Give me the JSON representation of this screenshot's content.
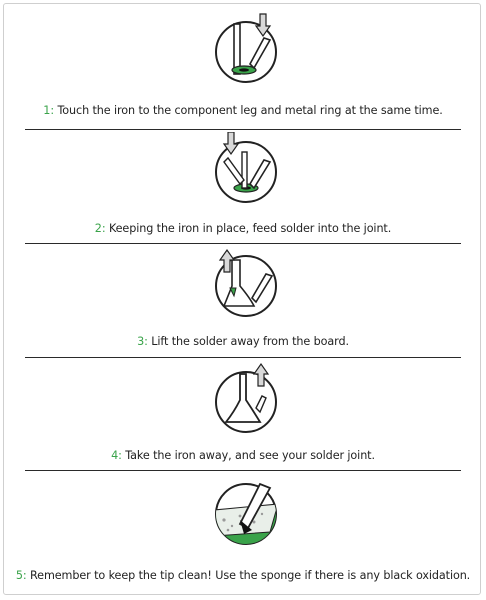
{
  "steps": [
    {
      "number": "1",
      "separator": ":",
      "text": " Touch the iron to the component leg and metal ring at the same time."
    },
    {
      "number": "2",
      "separator": ":",
      "text": " Keeping the iron in place, feed solder into the joint."
    },
    {
      "number": "3",
      "separator": ":",
      "text": " Lift the solder away from the board."
    },
    {
      "number": "4",
      "separator": ":",
      "text": " Take the iron away, and see your solder joint."
    },
    {
      "number": "5",
      "separator": ":",
      "text": " Remember to keep the tip clean! Use the sponge if there is any black oxidation."
    }
  ],
  "colors": {
    "accent": "#3aa34a",
    "text": "#222222",
    "line": "#2a2a2a",
    "arrow": "#d9d9d9"
  },
  "icons": [
    "solder-touch-icon",
    "solder-feed-icon",
    "solder-lift-icon",
    "iron-away-icon",
    "tip-clean-sponge-icon"
  ]
}
